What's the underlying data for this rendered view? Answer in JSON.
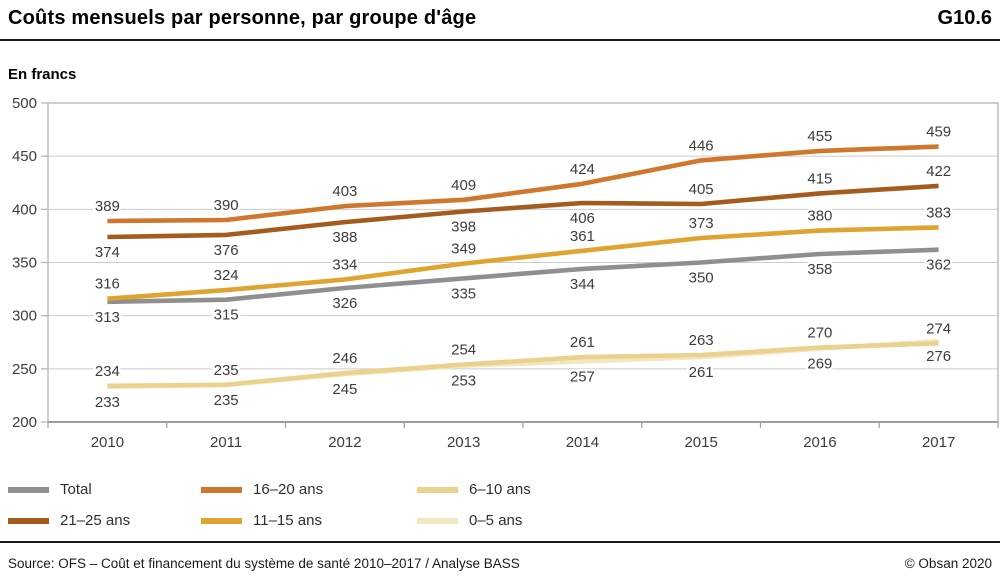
{
  "header": {
    "title": "Coûts mensuels par personne, par groupe d'âge",
    "code": "G10.6"
  },
  "chart_data": {
    "type": "line",
    "title": "Coûts mensuels par personne, par groupe d'âge",
    "unit_label": "En francs",
    "x": [
      2010,
      2011,
      2012,
      2013,
      2014,
      2015,
      2016,
      2017
    ],
    "ylim": [
      200,
      500
    ],
    "ytick_step": 50,
    "grid": "horizontal",
    "legend_position": "bottom",
    "series": [
      {
        "name": "Total",
        "color": "#8F8F8F",
        "values": [
          313,
          315,
          326,
          335,
          344,
          350,
          358,
          362
        ],
        "label_sides": [
          "below",
          "below",
          "below",
          "below",
          "below",
          "below",
          "below",
          "below"
        ]
      },
      {
        "name": "21–25 ans",
        "color": "#A55B1E",
        "values": [
          374,
          376,
          388,
          398,
          406,
          405,
          415,
          422
        ],
        "label_sides": [
          "below",
          "below",
          "below",
          "below",
          "below",
          "above",
          "above",
          "above"
        ]
      },
      {
        "name": "16–20 ans",
        "color": "#D0772E",
        "values": [
          389,
          390,
          403,
          409,
          424,
          446,
          455,
          459
        ],
        "label_sides": [
          "above",
          "above",
          "above",
          "above",
          "above",
          "above",
          "above",
          "above"
        ]
      },
      {
        "name": "11–15 ans",
        "color": "#DFA42F",
        "values": [
          316,
          324,
          334,
          349,
          361,
          373,
          380,
          383
        ],
        "label_sides": [
          "above",
          "above",
          "above",
          "above",
          "above",
          "above",
          "above",
          "above"
        ]
      },
      {
        "name": "6–10 ans",
        "color": "#EAD18E",
        "values": [
          234,
          235,
          246,
          254,
          261,
          263,
          270,
          274
        ],
        "label_sides": [
          "above",
          "above",
          "above",
          "above",
          "above",
          "above",
          "above",
          "above"
        ]
      },
      {
        "name": "0–5 ans",
        "color": "#F3E7C2",
        "values": [
          233,
          235,
          245,
          253,
          257,
          261,
          269,
          276
        ],
        "label_sides": [
          "below",
          "below",
          "below",
          "below",
          "below",
          "below",
          "below",
          "below"
        ]
      }
    ],
    "draw_order": [
      "Total",
      "0–5 ans",
      "6–10 ans",
      "11–15 ans",
      "21–25 ans",
      "16–20 ans"
    ],
    "legend_order": [
      "Total",
      "16–20 ans",
      "6–10 ans",
      "21–25 ans",
      "11–15 ans",
      "0–5 ans"
    ]
  },
  "footer": {
    "source": "Source: OFS – Coût et financement du système de santé 2010–2017 / Analyse BASS",
    "copyright": "© Obsan 2020"
  }
}
